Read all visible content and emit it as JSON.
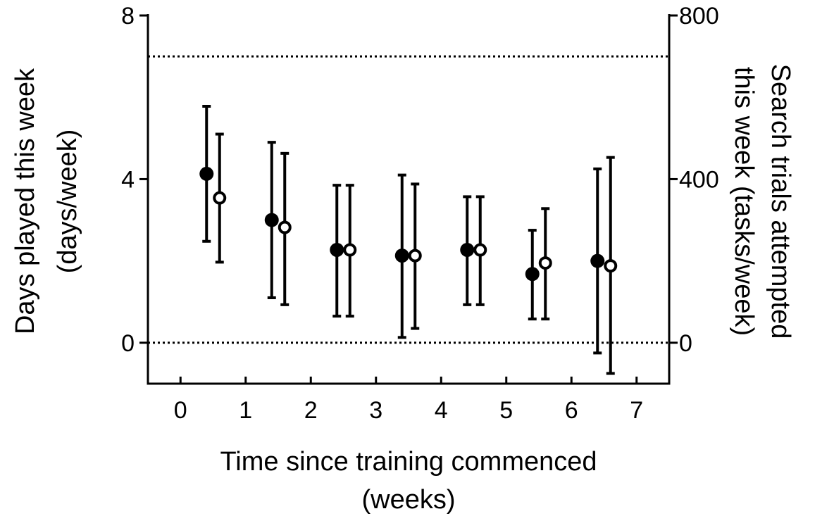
{
  "chart_data": {
    "type": "scatter",
    "x_axis": {
      "label_line1": "Time since training commenced",
      "label_line2": "(weeks)",
      "range": [
        -0.5,
        7.5
      ],
      "ticks": [
        0,
        1,
        2,
        3,
        4,
        5,
        6,
        7
      ],
      "tick_labels": [
        "0",
        "1",
        "2",
        "3",
        "4",
        "5",
        "6",
        "7"
      ]
    },
    "y_left_axis": {
      "label_line1": "Days played this week",
      "label_line2": "(days/week)",
      "range": [
        -1,
        8
      ],
      "ticks": [
        0,
        4,
        8
      ],
      "tick_labels": [
        "0",
        "4",
        "8"
      ]
    },
    "y_right_axis": {
      "label_line1": "Search trials attempted",
      "label_line2": "this week (tasks/week)",
      "range": [
        -100,
        800
      ],
      "ticks": [
        0,
        400,
        800
      ],
      "tick_labels": [
        "0",
        "400",
        "800"
      ]
    },
    "reference_lines": [
      {
        "axis": "left",
        "y": 0,
        "style": "dotted"
      },
      {
        "axis": "left",
        "y": 7,
        "style": "dotted"
      }
    ],
    "grid": false,
    "series": [
      {
        "marker": "filled-circle",
        "axis": "left",
        "color": "#000000",
        "points": [
          {
            "x": 0.4,
            "y": 4.13,
            "lo": 2.48,
            "hi": 5.78
          },
          {
            "x": 1.4,
            "y": 3.0,
            "lo": 1.1,
            "hi": 4.9
          },
          {
            "x": 2.4,
            "y": 2.27,
            "lo": 0.65,
            "hi": 3.85
          },
          {
            "x": 3.4,
            "y": 2.13,
            "lo": 0.13,
            "hi": 4.1
          },
          {
            "x": 4.4,
            "y": 2.27,
            "lo": 0.93,
            "hi": 3.57
          },
          {
            "x": 5.4,
            "y": 1.68,
            "lo": 0.58,
            "hi": 2.75
          },
          {
            "x": 6.4,
            "y": 2.0,
            "lo": -0.25,
            "hi": 4.25
          }
        ]
      },
      {
        "marker": "open-circle",
        "axis": "right",
        "color": "#000000",
        "points": [
          {
            "x": 0.6,
            "y": 354,
            "lo": 197,
            "hi": 510
          },
          {
            "x": 1.6,
            "y": 282,
            "lo": 93,
            "hi": 463
          },
          {
            "x": 2.6,
            "y": 227,
            "lo": 65,
            "hi": 385
          },
          {
            "x": 3.6,
            "y": 213,
            "lo": 35,
            "hi": 388
          },
          {
            "x": 4.6,
            "y": 227,
            "lo": 93,
            "hi": 357
          },
          {
            "x": 5.6,
            "y": 195,
            "lo": 58,
            "hi": 328
          },
          {
            "x": 6.6,
            "y": 188,
            "lo": -75,
            "hi": 453
          }
        ]
      }
    ]
  }
}
